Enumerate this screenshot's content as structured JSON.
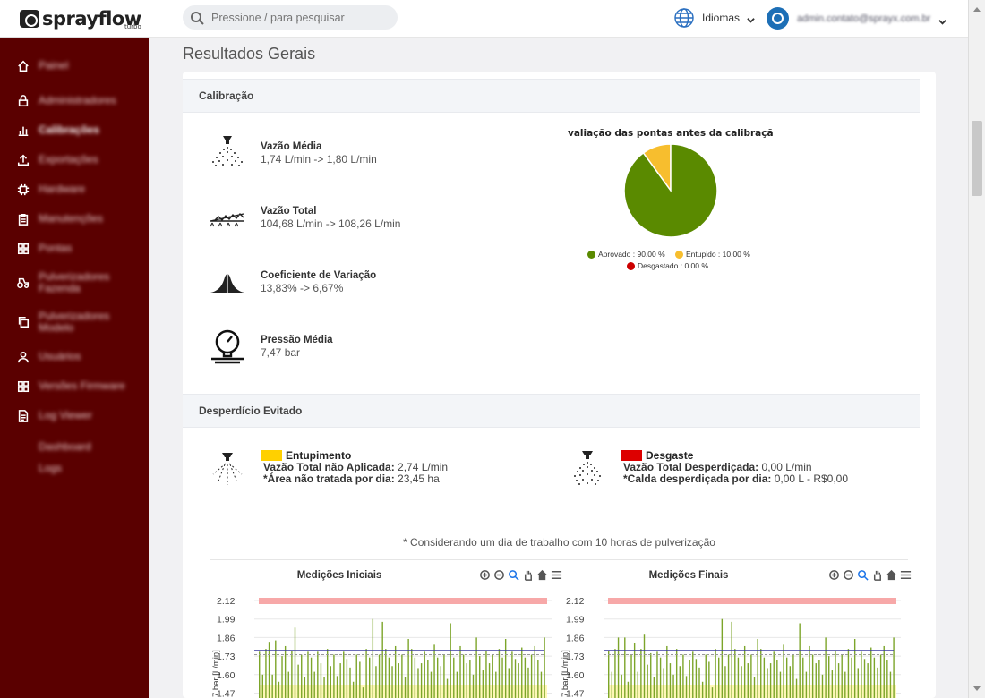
{
  "app": {
    "logo_text": "sprayflow",
    "logo_sub": "turbo"
  },
  "search": {
    "placeholder": "Pressione / para pesquisar"
  },
  "lang": {
    "label": "Idiomas"
  },
  "user": {
    "email": "admin.contato@sprayx.com.br"
  },
  "sidebar": {
    "items": [
      {
        "icon": "home-icon",
        "label": "Painel",
        "bold": false
      },
      {
        "icon": "lock-icon",
        "label": "Administradores",
        "bold": false
      },
      {
        "icon": "bar-chart-icon",
        "label": "Calibrações",
        "bold": true
      },
      {
        "icon": "upload-icon",
        "label": "Exportações",
        "bold": false
      },
      {
        "icon": "chip-icon",
        "label": "Hardware",
        "bold": false
      },
      {
        "icon": "clipboard-icon",
        "label": "Manutenções",
        "bold": false
      },
      {
        "icon": "grid-icon",
        "label": "Pontas",
        "bold": false
      },
      {
        "icon": "tractor-icon",
        "label": "Pulverizadores Fazenda",
        "bold": false
      },
      {
        "icon": "copy-icon",
        "label": "Pulverizadores Modelo",
        "bold": false
      },
      {
        "icon": "user-icon",
        "label": "Usuários",
        "bold": false
      },
      {
        "icon": "grid-icon",
        "label": "Versões Firmware",
        "bold": false
      },
      {
        "icon": "document-icon",
        "label": "Log Viewer",
        "bold": false
      }
    ],
    "sub_items": [
      "Dashboard",
      "Logs"
    ]
  },
  "page": {
    "title": "Resultados Gerais"
  },
  "calibration": {
    "header": "Calibração",
    "metrics": [
      {
        "icon": "nozzle-spray-icon",
        "title": "Vazão Média",
        "value": "1,74 L/min -> 1,80 L/min"
      },
      {
        "icon": "boom-sprayer-icon",
        "title": "Vazão Total",
        "value": "104,68 L/min -> 108,26 L/min"
      },
      {
        "icon": "bell-curve-icon",
        "title": "Coeficiente de Variação",
        "value": "13,83% -> 6,67%"
      },
      {
        "icon": "pressure-gauge-icon",
        "title": "Pressão Média",
        "value": "7,47 bar"
      }
    ]
  },
  "pie": {
    "title": "valiação das pontas antes da calibraçã",
    "slices": [
      {
        "label": "Aprovado",
        "value_label": "Aprovado : 90.00 %",
        "value": 90,
        "color": "#5a8a00"
      },
      {
        "label": "Entupido",
        "value_label": "Entupido : 10.00 %",
        "value": 10,
        "color": "#f7be2e"
      },
      {
        "label": "Desgastado",
        "value_label": "Desgastado : 0.00 %",
        "value": 0,
        "color": "#cc0000"
      }
    ]
  },
  "waste": {
    "header": "Desperdício Evitado",
    "clog": {
      "icon": "clogged-nozzle-icon",
      "color": "#ffd000",
      "title": "Entupimento",
      "line1_label": "Vazão Total não Aplicada:",
      "line1_value": "2,74 L/min",
      "line2_label": "*Área não tratada por dia:",
      "line2_value": "23,45 ha"
    },
    "wear": {
      "icon": "worn-nozzle-icon",
      "color": "#dd0000",
      "title": "Desgaste",
      "line1_label": "Vazão Total Desperdiçada:",
      "line1_value": "0,00 L/min",
      "line2_label": "*Calda desperdiçada por dia:",
      "line2_value": "0,00 L - R$0,00"
    },
    "note": "* Considerando um dia de trabalho com 10 horas de pulverização"
  },
  "chart_data": [
    {
      "type": "bar",
      "title": "Medições Iniciais",
      "ylabel": "7 bar [L/min]",
      "yticks": [
        "2.12",
        "1.99",
        "1.86",
        "1.73",
        "1.60",
        "1.47"
      ],
      "ylim": [
        1.47,
        2.12
      ],
      "values": [
        1.76,
        1.6,
        1.78,
        1.83,
        1.6,
        1.84,
        1.55,
        1.73,
        1.8,
        1.62,
        1.77,
        1.93,
        1.67,
        1.74,
        1.58,
        1.76,
        1.72,
        1.62,
        1.76,
        1.68,
        1.58,
        1.78,
        1.66,
        1.74,
        1.59,
        1.68,
        1.76,
        1.71,
        1.65,
        1.55,
        1.74,
        1.69,
        1.51,
        1.78,
        1.72,
        1.99,
        1.66,
        1.74,
        1.97,
        1.78,
        1.72,
        1.66,
        1.8,
        1.68,
        1.74,
        1.58,
        1.85,
        1.78,
        1.72,
        1.64,
        1.68,
        1.76,
        1.7,
        1.62,
        1.81,
        1.72,
        1.66,
        1.74,
        1.57,
        1.96,
        1.72,
        1.62,
        1.8,
        1.74,
        1.68,
        1.7,
        1.6,
        1.86,
        1.73,
        1.63,
        1.77,
        1.68,
        1.74,
        1.62,
        1.78,
        1.72,
        1.85,
        1.64,
        1.76,
        1.71,
        1.68,
        1.79,
        1.72,
        1.65,
        1.74,
        1.8,
        1.7,
        1.62,
        1.86
      ],
      "reference_lines": {
        "upper_band": 2.12,
        "max_line": 1.77,
        "mean_line": 1.74,
        "lower_band": 1.47
      }
    },
    {
      "type": "bar",
      "title": "Medições Finais",
      "ylabel": "7 bar [L/min]",
      "yticks": [
        "2.12",
        "1.99",
        "1.86",
        "1.73",
        "1.60",
        "1.47"
      ],
      "ylim": [
        1.47,
        2.12
      ],
      "values": [
        1.77,
        1.62,
        1.78,
        1.86,
        1.6,
        1.86,
        1.55,
        1.74,
        1.82,
        1.62,
        1.78,
        1.88,
        1.67,
        1.75,
        1.58,
        1.76,
        1.72,
        1.64,
        1.8,
        1.68,
        1.6,
        1.78,
        1.66,
        1.74,
        1.59,
        1.7,
        1.76,
        1.71,
        1.65,
        1.55,
        1.74,
        1.69,
        1.51,
        1.78,
        1.72,
        1.99,
        1.66,
        1.74,
        1.97,
        1.78,
        1.72,
        1.66,
        1.8,
        1.68,
        1.74,
        1.58,
        1.85,
        1.78,
        1.72,
        1.64,
        1.68,
        1.76,
        1.7,
        1.62,
        1.81,
        1.72,
        1.66,
        1.74,
        1.57,
        1.96,
        1.72,
        1.62,
        1.8,
        1.74,
        1.68,
        1.7,
        1.6,
        1.86,
        1.73,
        1.63,
        1.77,
        1.68,
        1.74,
        1.62,
        1.78,
        1.72,
        1.85,
        1.64,
        1.76,
        1.71,
        1.68,
        1.79,
        1.72,
        1.65,
        1.74,
        1.8,
        1.7,
        1.62,
        1.86
      ],
      "reference_lines": {
        "upper_band": 2.12,
        "max_line": 1.77,
        "mean_line": 1.74,
        "lower_band": 1.47
      }
    }
  ]
}
